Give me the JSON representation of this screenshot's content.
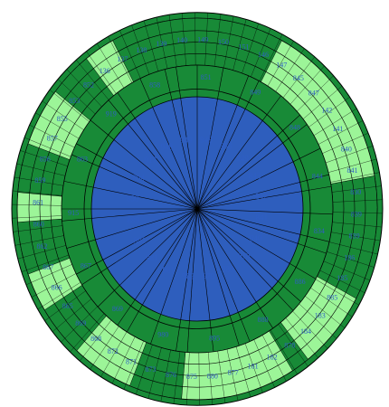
{
  "colors": {
    "background": "#ffffff",
    "outer_ring_light": "#9cf598",
    "ring_dark_green": "#188a37",
    "core_blue": "#2e5ebd",
    "outline": "#000000",
    "label_blue": "#2f5ec4"
  },
  "diagram": {
    "type": "sunburst",
    "core_labels": [
      "948",
      "950",
      "949",
      "843",
      "842",
      "841",
      "940",
      "979",
      "980",
      "978",
      "982",
      "981",
      "981",
      "891",
      "889",
      "890",
      "894",
      "917",
      "948",
      "949"
    ],
    "middle_ring_labels": [
      "851",
      "849",
      "848",
      "844",
      "834",
      "886",
      "888",
      "895",
      "980",
      "869",
      "867",
      "915",
      "863",
      "919",
      "858"
    ],
    "outer_ring_labels": [
      "149",
      "150",
      "151",
      "146",
      "147",
      "845",
      "847",
      "142",
      "141",
      "840",
      "841",
      "830",
      "839",
      "839",
      "186",
      "185",
      "885",
      "183",
      "184",
      "878",
      "182",
      "181",
      "877",
      "880",
      "875",
      "876",
      "873",
      "871",
      "872",
      "868",
      "869",
      "865",
      "866",
      "867",
      "862",
      "860",
      "861",
      "859",
      "856",
      "857",
      "855",
      "853",
      "852",
      "136",
      "137",
      "138",
      "139",
      "140"
    ]
  }
}
